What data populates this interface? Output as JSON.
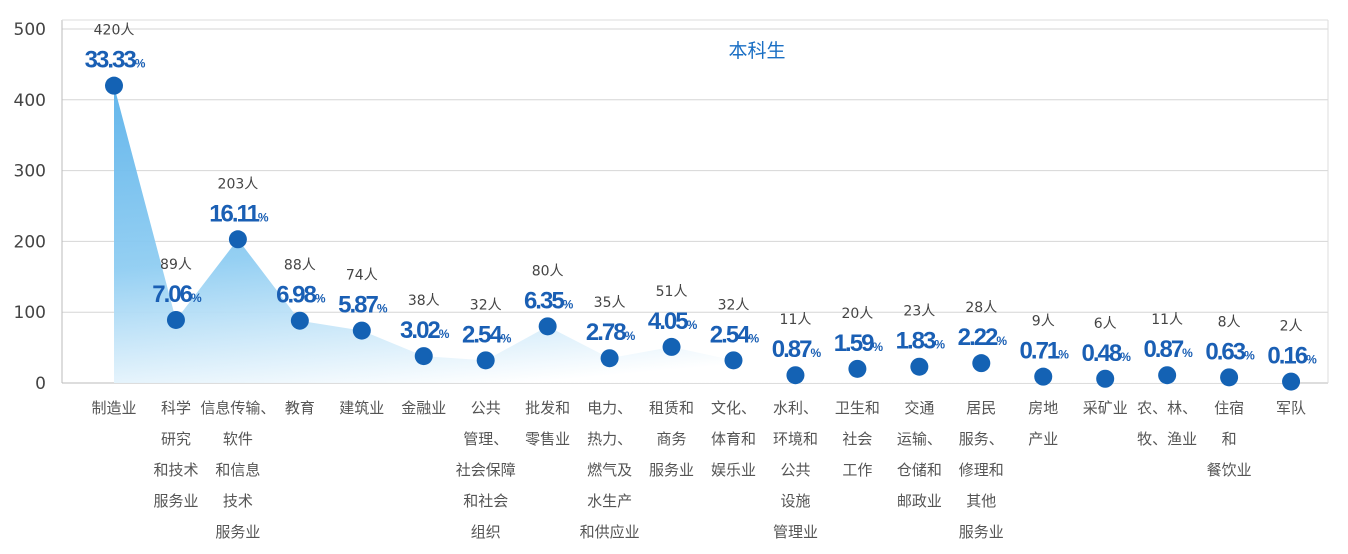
{
  "chart_data": {
    "type": "area",
    "title": "本科生",
    "xlabel": "",
    "ylabel": "",
    "ylim": [
      0,
      500
    ],
    "yticks": [
      0,
      100,
      200,
      300,
      400,
      500
    ],
    "grid": true,
    "count_suffix": "人",
    "percent_suffix": "%",
    "colors": {
      "fill_top": "#6fbdec",
      "fill_bottom": "#ffffff",
      "marker": "#1462b4",
      "percent": "#1a5fb4"
    },
    "categories": [
      [
        "制造业"
      ],
      [
        "科学",
        "研究",
        "和技术",
        "服务业"
      ],
      [
        "信息传输、",
        "软件",
        "和信息",
        "技术",
        "服务业"
      ],
      [
        "教育"
      ],
      [
        "建筑业"
      ],
      [
        "金融业"
      ],
      [
        "公共",
        "管理、",
        "社会保障",
        "和社会",
        "组织"
      ],
      [
        "批发和",
        "零售业"
      ],
      [
        "电力、",
        "热力、",
        "燃气及",
        "水生产",
        "和供应业"
      ],
      [
        "租赁和",
        "商务",
        "服务业"
      ],
      [
        "文化、",
        "体育和",
        "娱乐业"
      ],
      [
        "水利、",
        "环境和",
        "公共",
        "设施",
        "管理业"
      ],
      [
        "卫生和",
        "社会",
        "工作"
      ],
      [
        "交通",
        "运输、",
        "仓储和",
        "邮政业"
      ],
      [
        "居民",
        "服务、",
        "修理和",
        "其他",
        "服务业"
      ],
      [
        "房地",
        "产业"
      ],
      [
        "采矿业"
      ],
      [
        "农、林、",
        "牧、渔业"
      ],
      [
        "住宿",
        "和",
        "餐饮业"
      ],
      [
        "军队"
      ]
    ],
    "values": [
      420,
      89,
      203,
      88,
      74,
      38,
      32,
      80,
      35,
      51,
      32,
      11,
      20,
      23,
      28,
      9,
      6,
      11,
      8,
      2
    ],
    "percents": [
      "33.33",
      "7.06",
      "16.11",
      "6.98",
      "5.87",
      "3.02",
      "2.54",
      "6.35",
      "2.78",
      "4.05",
      "2.54",
      "0.87",
      "1.59",
      "1.83",
      "2.22",
      "0.71",
      "0.48",
      "0.87",
      "0.63",
      "0.16"
    ]
  }
}
